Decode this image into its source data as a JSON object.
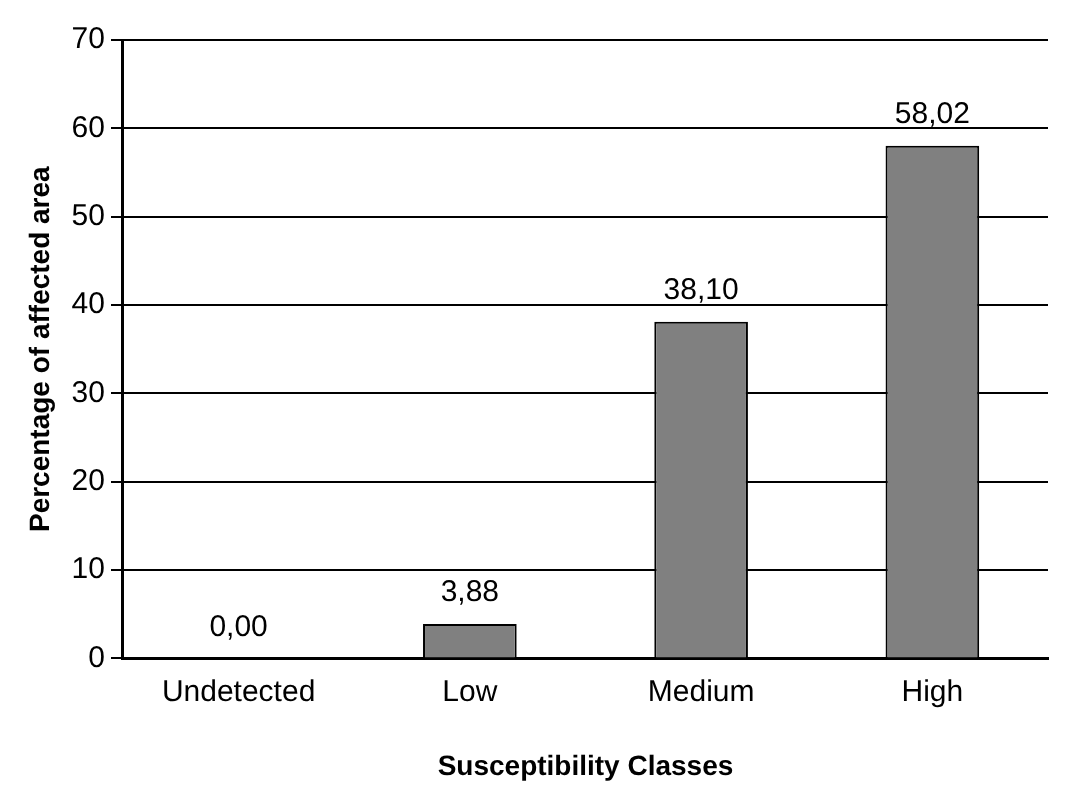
{
  "chart_data": {
    "type": "bar",
    "xlabel": "Susceptibility Classes",
    "ylabel": "Percentage of affected area",
    "categories": [
      "Undetected",
      "Low",
      "Medium",
      "High"
    ],
    "values": [
      0,
      3.88,
      38.1,
      58.02
    ],
    "value_labels": [
      "0,00",
      "3,88",
      "38,10",
      "58,02"
    ],
    "color": "#808080",
    "ylim": [
      0,
      70
    ],
    "yticks": [
      0,
      10,
      20,
      30,
      40,
      50,
      60,
      70
    ],
    "grid": "y",
    "legend": false
  }
}
